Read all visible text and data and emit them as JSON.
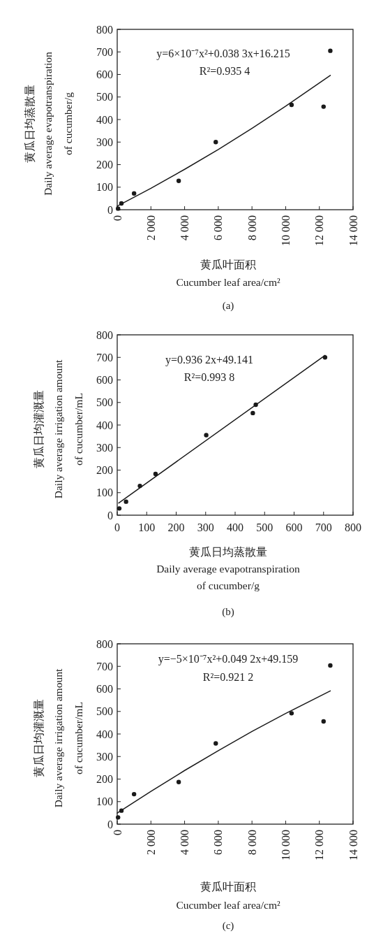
{
  "chart_data": [
    {
      "type": "scatter",
      "xlabel": "黄瓜叶面积\nCucumber leaf area/cm²",
      "ylabel": "黄瓜日均蒸散量\nDaily average evapotranspiration\nof cucumber/g",
      "series": [
        {
          "type": "scatter",
          "marker": "circle",
          "color": "#1a1a1a",
          "x": [
            50,
            250,
            1000,
            3650,
            5850,
            10350,
            12250,
            12650
          ],
          "values": [
            5,
            28,
            72,
            128,
            300,
            465,
            457,
            705
          ]
        },
        {
          "type": "line",
          "color": "#1a1a1a",
          "x": [
            0,
            2000,
            4000,
            6000,
            8000,
            10000,
            12650
          ],
          "values": [
            16,
            95,
            179,
            267,
            361,
            459,
            596
          ]
        }
      ],
      "xlim": [
        0,
        14000
      ],
      "ylim": [
        0,
        800
      ],
      "xticks": [
        0,
        {
          "value": 2000,
          "label": "2 000"
        },
        {
          "value": 4000,
          "label": "4 000"
        },
        {
          "value": 6000,
          "label": "6 000"
        },
        {
          "value": 8000,
          "label": "8 000"
        },
        {
          "value": 10000,
          "label": "10 000"
        },
        {
          "value": 12000,
          "label": "12 000"
        },
        {
          "value": 14000,
          "label": "14 000"
        }
      ],
      "yticks": [
        0,
        100,
        200,
        300,
        400,
        500,
        600,
        700,
        800
      ],
      "annotations": [
        "y=6×10⁻⁷x²+0.038 3x+16.215",
        "R²=0.935 4",
        "(a)"
      ]
    },
    {
      "type": "scatter",
      "xlabel": "黄瓜日均蒸散量\nDaily average evapotranspiration\nof cucumber/g",
      "ylabel": "黄瓜日均灌溉量\nDaily average irrigation amount\nof cucumber/mL",
      "series": [
        {
          "type": "scatter",
          "marker": "circle",
          "color": "#1a1a1a",
          "x": [
            7,
            30,
            77,
            130,
            302,
            460,
            470,
            705
          ],
          "values": [
            30,
            60,
            130,
            183,
            355,
            453,
            490,
            700
          ]
        },
        {
          "type": "line",
          "color": "#1a1a1a",
          "x": [
            5,
            705
          ],
          "values": [
            54,
            709
          ]
        }
      ],
      "xlim": [
        0,
        800
      ],
      "ylim": [
        0,
        800
      ],
      "xticks": [
        0,
        100,
        200,
        300,
        400,
        500,
        600,
        700,
        800
      ],
      "yticks": [
        0,
        100,
        200,
        300,
        400,
        500,
        600,
        700,
        800
      ],
      "annotations": [
        "y=0.936 2x+49.141",
        "R²=0.993 8",
        "(b)"
      ]
    },
    {
      "type": "scatter",
      "xlabel": "黄瓜叶面积\nCucumber leaf area/cm²",
      "ylabel": "黄瓜日均灌溉量\nDaily average irrigation amount\nof cucumber/mL",
      "series": [
        {
          "type": "scatter",
          "marker": "circle",
          "color": "#1a1a1a",
          "x": [
            50,
            250,
            1000,
            3650,
            5850,
            10350,
            12250,
            12650
          ],
          "values": [
            30,
            60,
            133,
            187,
            358,
            492,
            456,
            704
          ]
        },
        {
          "type": "line",
          "color": "#1a1a1a",
          "x": [
            0,
            2000,
            4000,
            6000,
            8000,
            10000,
            12650
          ],
          "values": [
            49,
            145,
            238,
            326,
            411,
            491,
            591
          ]
        }
      ],
      "xlim": [
        0,
        14000
      ],
      "ylim": [
        0,
        800
      ],
      "xticks": [
        0,
        {
          "value": 2000,
          "label": "2 000"
        },
        {
          "value": 4000,
          "label": "4 000"
        },
        {
          "value": 6000,
          "label": "6 000"
        },
        {
          "value": 8000,
          "label": "8 000"
        },
        {
          "value": 10000,
          "label": "10 000"
        },
        {
          "value": 12000,
          "label": "12 000"
        },
        {
          "value": 14000,
          "label": "14 000"
        }
      ],
      "yticks": [
        0,
        100,
        200,
        300,
        400,
        500,
        600,
        700,
        800
      ],
      "annotations": [
        "y=−5×10⁻⁷x²+0.049 2x+49.159",
        "R²=0.921 2",
        "(c)"
      ]
    }
  ]
}
